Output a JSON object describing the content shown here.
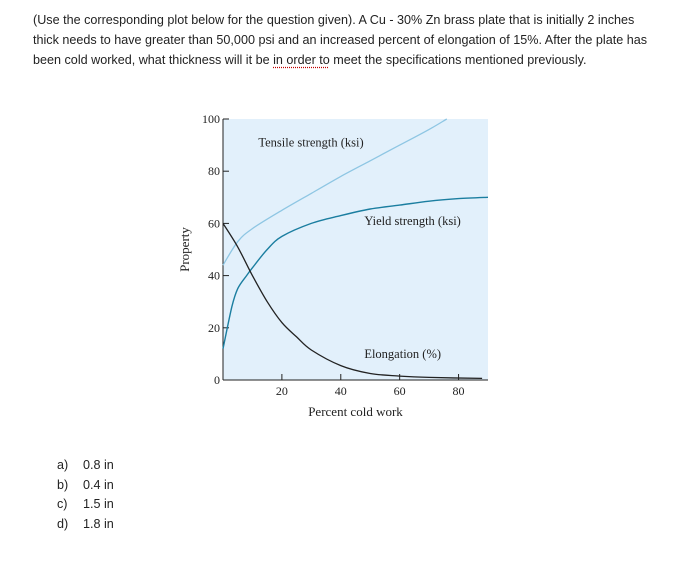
{
  "question": {
    "before_marked": "(Use the corresponding plot below for the question given). A Cu - 30% Zn brass plate that is initially 2 inches thick needs to have greater than 50,000 psi and an increased percent of elongation of 15%. After the plate has been cold worked, what thickness will it be ",
    "marked_phrase": "in order to",
    "after_marked": " meet the specifications mentioned previously."
  },
  "chart_data": {
    "type": "line",
    "xlabel": "Percent cold work",
    "ylabel": "Property",
    "xlim": [
      0,
      90
    ],
    "ylim": [
      0,
      100
    ],
    "x_ticks": [
      20,
      40,
      60,
      80
    ],
    "y_ticks": [
      0,
      20,
      40,
      60,
      80,
      100
    ],
    "grid": false,
    "colors": {
      "plot_background": "#e2f0fb",
      "tensile_strength": "#8ec6e3",
      "yield_strength": "#1b7ea0",
      "elongation": "#222222"
    },
    "series": [
      {
        "name": "Tensile strength (ksi)",
        "x": [
          0,
          5,
          10,
          20,
          30,
          40,
          50,
          60,
          70,
          76
        ],
        "y": [
          44,
          53,
          58,
          65,
          71.5,
          78,
          84,
          90,
          96,
          100
        ]
      },
      {
        "name": "Yield strength (ksi)",
        "x": [
          0,
          3,
          5,
          8,
          10,
          15,
          20,
          30,
          40,
          50,
          60,
          70,
          80,
          90
        ],
        "y": [
          12,
          28,
          35,
          40,
          43,
          50,
          55,
          60,
          63,
          65.5,
          67,
          68.5,
          69.5,
          70
        ]
      },
      {
        "name": "Elongation (%)",
        "x": [
          0,
          5,
          10,
          15,
          20,
          25,
          30,
          40,
          50,
          60,
          70,
          88
        ],
        "y": [
          60,
          51,
          40,
          30,
          22,
          16.5,
          11.5,
          5.5,
          2.5,
          1.5,
          1,
          0.6
        ]
      }
    ]
  },
  "options": [
    {
      "letter": "a)",
      "text": "0.8 in"
    },
    {
      "letter": "b)",
      "text": "0.4 in"
    },
    {
      "letter": "c)",
      "text": "1.5 in"
    },
    {
      "letter": "d)",
      "text": "1.8 in"
    }
  ]
}
